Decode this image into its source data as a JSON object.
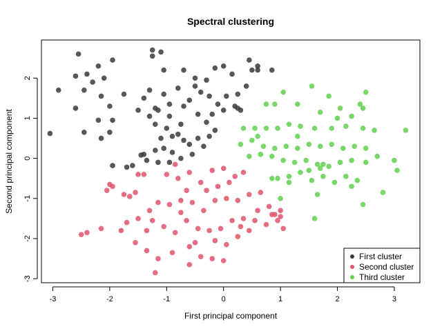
{
  "chart_data": {
    "type": "scatter",
    "title": "Spectral clustering",
    "xlabel": "First principal component",
    "ylabel": "Second principal component",
    "xlim": [
      -3.2,
      3.45
    ],
    "ylim": [
      -3.1,
      2.95
    ],
    "xticks": [
      -3,
      -2,
      -1,
      0,
      1,
      2,
      3
    ],
    "yticks": [
      -3,
      -2,
      -1,
      0,
      1,
      2
    ],
    "grid": false,
    "legend_position": "bottom-right",
    "series": [
      {
        "name": "First cluster",
        "color": "#3a3a3a",
        "points": [
          [
            -2.55,
            2.6
          ],
          [
            -2.6,
            2.05
          ],
          [
            -2.4,
            2.1
          ],
          [
            -2.2,
            2.3
          ],
          [
            -2.1,
            2.0
          ],
          [
            -1.95,
            2.45
          ],
          [
            -2.3,
            1.9
          ],
          [
            -2.45,
            1.7
          ],
          [
            -2.9,
            1.7
          ],
          [
            -2.6,
            1.25
          ],
          [
            -2.15,
            1.55
          ],
          [
            -2.0,
            1.3
          ],
          [
            -2.2,
            0.95
          ],
          [
            -1.95,
            0.95
          ],
          [
            -1.75,
            1.6
          ],
          [
            -2.45,
            0.65
          ],
          [
            -2.0,
            0.65
          ],
          [
            -2.15,
            0.5
          ],
          [
            -3.05,
            0.62
          ],
          [
            -1.95,
            -0.18
          ],
          [
            -1.7,
            -0.22
          ],
          [
            -1.6,
            -0.18
          ],
          [
            -1.25,
            2.7
          ],
          [
            -1.25,
            2.55
          ],
          [
            -1.1,
            2.65
          ],
          [
            -1.05,
            2.2
          ],
          [
            -0.7,
            2.2
          ],
          [
            -0.5,
            2.0
          ],
          [
            -0.3,
            1.95
          ],
          [
            -0.15,
            2.25
          ],
          [
            0.0,
            2.3
          ],
          [
            0.15,
            2.1
          ],
          [
            0.45,
            2.45
          ],
          [
            0.5,
            2.2
          ],
          [
            0.6,
            2.2
          ],
          [
            0.85,
            2.2
          ],
          [
            0.6,
            2.3
          ],
          [
            -1.4,
            1.5
          ],
          [
            -1.3,
            1.7
          ],
          [
            -1.05,
            1.6
          ],
          [
            -0.8,
            1.75
          ],
          [
            -0.6,
            1.45
          ],
          [
            -0.4,
            1.65
          ],
          [
            -0.25,
            1.55
          ],
          [
            -0.1,
            1.35
          ],
          [
            0.05,
            1.55
          ],
          [
            0.25,
            1.6
          ],
          [
            0.4,
            1.8
          ],
          [
            -1.5,
            1.2
          ],
          [
            -1.3,
            1.05
          ],
          [
            -1.15,
            1.2
          ],
          [
            -0.95,
            1.05
          ],
          [
            -0.7,
            1.3
          ],
          [
            -0.45,
            1.1
          ],
          [
            -0.2,
            1.1
          ],
          [
            0.0,
            1.2
          ],
          [
            0.25,
            1.25
          ],
          [
            -1.2,
            0.85
          ],
          [
            -1.0,
            0.75
          ],
          [
            -0.75,
            0.85
          ],
          [
            -0.3,
            0.9
          ],
          [
            -0.15,
            0.7
          ],
          [
            -1.1,
            0.5
          ],
          [
            -0.9,
            0.55
          ],
          [
            -0.7,
            0.45
          ],
          [
            -0.45,
            0.5
          ],
          [
            -0.25,
            0.55
          ],
          [
            -1.4,
            0.1
          ],
          [
            -1.2,
            0.2
          ],
          [
            -1.05,
            0.25
          ],
          [
            -0.9,
            0.15
          ],
          [
            -0.6,
            0.35
          ],
          [
            -0.35,
            0.3
          ],
          [
            -1.35,
            -0.05
          ],
          [
            -1.15,
            -0.1
          ],
          [
            -0.95,
            -0.1
          ],
          [
            -0.75,
            0.0
          ],
          [
            -0.55,
            0.1
          ],
          [
            -1.45,
            0.08
          ],
          [
            -0.8,
            0.6
          ],
          [
            -0.95,
            1.35
          ],
          [
            -1.2,
            1.25
          ],
          [
            -0.5,
            1.8
          ],
          [
            0.2,
            1.3
          ],
          [
            0.3,
            1.2
          ]
        ]
      },
      {
        "name": "Second cluster",
        "color": "#df536b",
        "points": [
          [
            -2.05,
            -0.8
          ],
          [
            -1.95,
            -0.7
          ],
          [
            -1.75,
            -0.9
          ],
          [
            -1.55,
            -0.85
          ],
          [
            -1.4,
            -0.4
          ],
          [
            -1.5,
            -0.4
          ],
          [
            -2.0,
            -0.65
          ],
          [
            -2.15,
            -1.75
          ],
          [
            -2.5,
            -1.9
          ],
          [
            -2.4,
            -1.85
          ],
          [
            -1.8,
            -1.8
          ],
          [
            -1.7,
            -1.6
          ],
          [
            -1.5,
            -1.5
          ],
          [
            -1.3,
            -1.3
          ],
          [
            -1.15,
            -1.1
          ],
          [
            -0.95,
            -1.15
          ],
          [
            -0.75,
            -1.35
          ],
          [
            -0.55,
            -1.1
          ],
          [
            -0.35,
            -1.3
          ],
          [
            -0.15,
            -1.05
          ],
          [
            0.05,
            -1.0
          ],
          [
            0.25,
            -1.05
          ],
          [
            0.45,
            -0.9
          ],
          [
            0.65,
            -0.85
          ],
          [
            0.8,
            -1.2
          ],
          [
            -1.25,
            -1.55
          ],
          [
            -1.05,
            -1.7
          ],
          [
            -0.85,
            -1.85
          ],
          [
            -0.65,
            -1.55
          ],
          [
            -0.45,
            -1.75
          ],
          [
            -0.25,
            -1.8
          ],
          [
            -0.05,
            -1.75
          ],
          [
            0.15,
            -1.55
          ],
          [
            0.35,
            -1.5
          ],
          [
            0.55,
            -1.55
          ],
          [
            0.75,
            -1.65
          ],
          [
            0.95,
            -1.55
          ],
          [
            1.05,
            -1.75
          ],
          [
            -1.55,
            -2.1
          ],
          [
            -1.35,
            -2.3
          ],
          [
            -1.15,
            -2.5
          ],
          [
            -0.9,
            -2.35
          ],
          [
            -0.6,
            -2.2
          ],
          [
            -0.4,
            -2.45
          ],
          [
            -0.15,
            -2.05
          ],
          [
            0.05,
            -2.15
          ],
          [
            0.25,
            -1.95
          ],
          [
            0.45,
            -1.8
          ],
          [
            -1.2,
            -2.85
          ],
          [
            -0.6,
            -2.65
          ],
          [
            -0.2,
            -2.5
          ],
          [
            0.0,
            -2.55
          ],
          [
            -1.0,
            -0.4
          ],
          [
            -0.8,
            -0.5
          ],
          [
            -0.6,
            -0.35
          ],
          [
            -0.4,
            -0.6
          ],
          [
            -0.2,
            -0.3
          ],
          [
            0.0,
            -0.25
          ],
          [
            0.2,
            -0.45
          ],
          [
            0.35,
            -0.35
          ],
          [
            -0.3,
            -0.8
          ],
          [
            -0.1,
            -0.7
          ],
          [
            0.1,
            -0.6
          ],
          [
            -0.85,
            -0.15
          ],
          [
            -0.65,
            -0.8
          ],
          [
            0.85,
            -1.4
          ],
          [
            1.0,
            -1.3
          ],
          [
            1.0,
            -1.45
          ],
          [
            0.9,
            -1.4
          ],
          [
            -1.65,
            -0.95
          ],
          [
            -1.35,
            -1.8
          ],
          [
            -0.75,
            -1.05
          ],
          [
            -0.5,
            -2.1
          ],
          [
            0.3,
            -1.7
          ],
          [
            0.6,
            -1.3
          ]
        ]
      },
      {
        "name": "Third cluster",
        "color": "#61d04f",
        "points": [
          [
            1.05,
            1.65
          ],
          [
            1.55,
            1.8
          ],
          [
            1.85,
            1.55
          ],
          [
            2.5,
            1.65
          ],
          [
            2.4,
            1.35
          ],
          [
            0.75,
            1.35
          ],
          [
            0.9,
            1.35
          ],
          [
            1.3,
            1.35
          ],
          [
            1.7,
            1.15
          ],
          [
            2.05,
            1.25
          ],
          [
            2.45,
            1.25
          ],
          [
            2.25,
            1.05
          ],
          [
            2.0,
            1.0
          ],
          [
            0.35,
            0.75
          ],
          [
            0.55,
            0.75
          ],
          [
            0.75,
            0.75
          ],
          [
            0.95,
            0.75
          ],
          [
            1.15,
            0.85
          ],
          [
            1.35,
            0.8
          ],
          [
            1.6,
            0.75
          ],
          [
            1.9,
            0.75
          ],
          [
            2.15,
            0.8
          ],
          [
            2.45,
            0.75
          ],
          [
            2.65,
            0.7
          ],
          [
            3.2,
            0.7
          ],
          [
            0.3,
            0.35
          ],
          [
            0.5,
            0.45
          ],
          [
            0.7,
            0.3
          ],
          [
            0.9,
            0.25
          ],
          [
            1.1,
            0.3
          ],
          [
            1.3,
            0.25
          ],
          [
            1.5,
            0.35
          ],
          [
            1.7,
            0.3
          ],
          [
            1.9,
            0.35
          ],
          [
            2.1,
            0.25
          ],
          [
            2.3,
            0.3
          ],
          [
            2.5,
            0.25
          ],
          [
            0.45,
            0.05
          ],
          [
            0.65,
            0.1
          ],
          [
            0.85,
            0.05
          ],
          [
            1.05,
            -0.05
          ],
          [
            1.25,
            -0.1
          ],
          [
            1.45,
            -0.05
          ],
          [
            1.65,
            -0.15
          ],
          [
            1.85,
            -0.2
          ],
          [
            2.05,
            -0.1
          ],
          [
            2.25,
            -0.05
          ],
          [
            2.5,
            -0.1
          ],
          [
            2.7,
            0.05
          ],
          [
            3.0,
            -0.05
          ],
          [
            3.05,
            -0.3
          ],
          [
            0.95,
            -0.5
          ],
          [
            1.15,
            -0.45
          ],
          [
            1.35,
            -0.35
          ],
          [
            1.55,
            -0.55
          ],
          [
            1.75,
            -0.45
          ],
          [
            1.95,
            -0.6
          ],
          [
            2.15,
            -0.45
          ],
          [
            2.35,
            -0.55
          ],
          [
            1.0,
            -1.0
          ],
          [
            2.25,
            -0.7
          ],
          [
            2.8,
            -0.85
          ],
          [
            1.65,
            -0.9
          ],
          [
            2.45,
            -1.15
          ],
          [
            1.6,
            -1.5
          ],
          [
            1.75,
            -0.15
          ],
          [
            1.3,
            0.55
          ],
          [
            0.6,
            0.55
          ],
          [
            1.5,
            -0.3
          ],
          [
            0.85,
            -0.5
          ],
          [
            1.7,
            -0.25
          ],
          [
            1.15,
            -0.6
          ]
        ]
      }
    ]
  }
}
